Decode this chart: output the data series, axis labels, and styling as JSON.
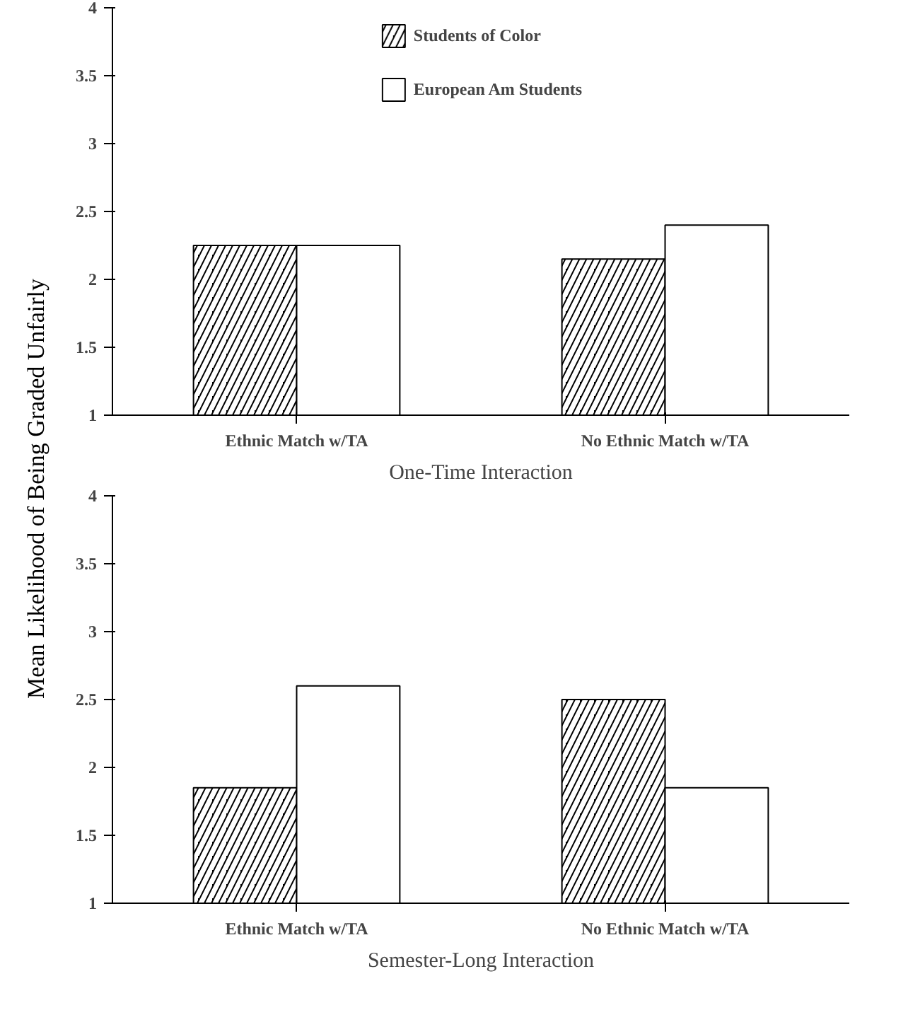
{
  "chart_data": [
    {
      "type": "bar",
      "xlabel": "One-Time Interaction",
      "ylabel": "Mean Likelihood of Being Graded Unfairly",
      "categories": [
        "Ethnic Match w/TA",
        "No Ethnic Match w/TA"
      ],
      "series": [
        {
          "name": "Students of Color",
          "color": "#000000",
          "values": [
            2.25,
            2.15
          ]
        },
        {
          "name": "European Am Students",
          "color": "#ffffff",
          "values": [
            2.25,
            2.4
          ]
        }
      ],
      "ylim": [
        1,
        4
      ],
      "yticks": [
        1,
        1.5,
        2,
        2.5,
        3,
        3.5,
        4
      ],
      "legend": "top",
      "grid": false
    },
    {
      "type": "bar",
      "xlabel": "Semester-Long Interaction",
      "categories": [
        "Ethnic Match w/TA",
        "No Ethnic Match w/TA"
      ],
      "series": [
        {
          "color": "#000000",
          "values": [
            1.85,
            2.5
          ]
        },
        {
          "color": "#ffffff",
          "values": [
            2.6,
            1.85
          ]
        }
      ],
      "ylim": [
        1,
        4
      ],
      "yticks": [
        1,
        1.5,
        2,
        2.5,
        3,
        3.5,
        4
      ],
      "legend": false,
      "grid": false
    }
  ]
}
